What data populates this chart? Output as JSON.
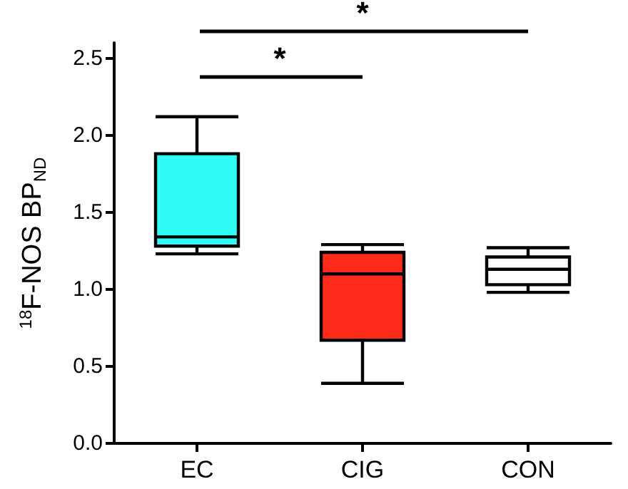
{
  "chart_data": {
    "type": "box",
    "ylabel": "$^{18}$F-NOS BP$_{ND}$",
    "categories": [
      "EC",
      "CIG",
      "CON"
    ],
    "colors": [
      "#2efcf5",
      "#ff2a1a",
      "#ffffff"
    ],
    "boxes": [
      {
        "low": 1.23,
        "q1": 1.28,
        "median": 1.34,
        "q3": 1.88,
        "high": 2.12
      },
      {
        "low": 0.39,
        "q1": 0.67,
        "median": 1.1,
        "q3": 1.24,
        "high": 1.29
      },
      {
        "low": 0.98,
        "q1": 1.03,
        "median": 1.13,
        "q3": 1.21,
        "high": 1.27
      }
    ],
    "ylim": [
      0,
      2.6
    ],
    "yticks": [
      {
        "value": 0,
        "label": "0.0"
      },
      0.5,
      {
        "value": 1,
        "label": "1.0"
      },
      1.5,
      {
        "value": 2,
        "label": "2.0"
      },
      2.5
    ],
    "grid": false,
    "annotations": [
      "*",
      "*"
    ]
  }
}
